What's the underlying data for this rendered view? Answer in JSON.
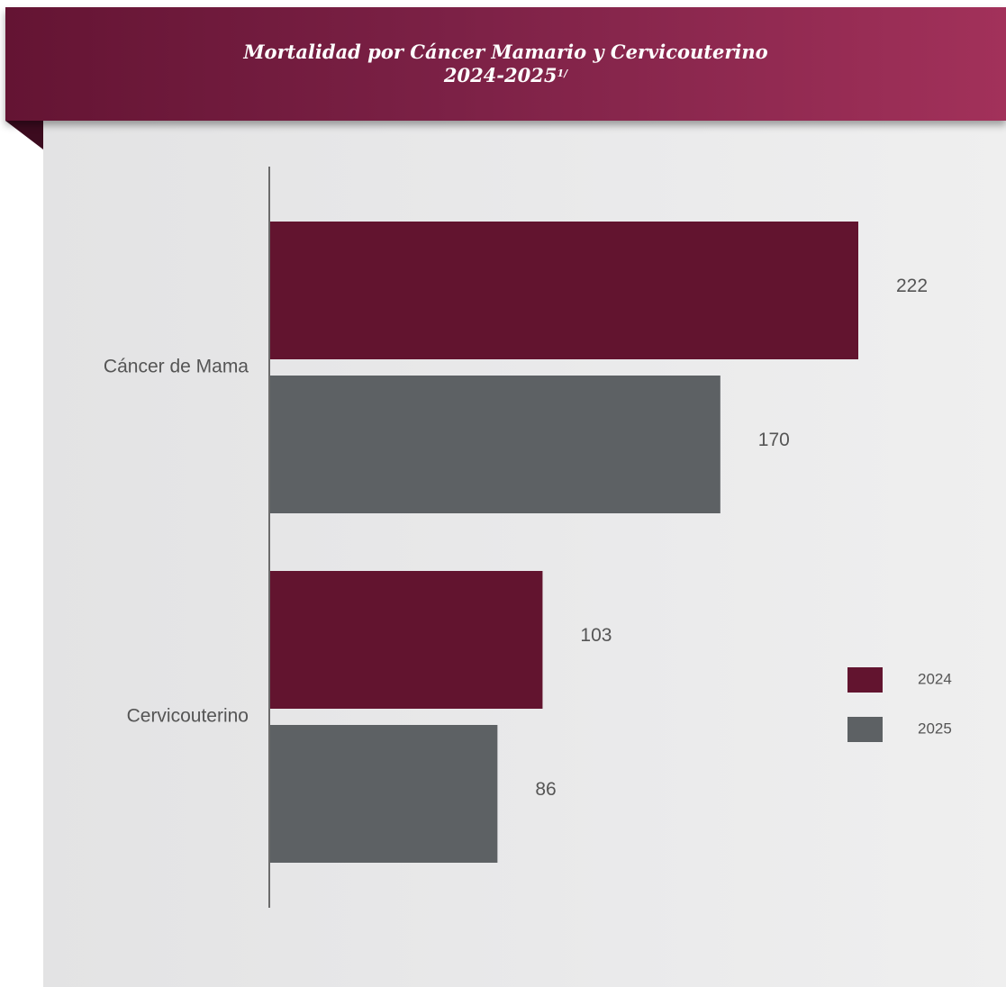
{
  "header": {
    "title_line1": "Mortalidad por Cáncer Mamario y Cervicouterino",
    "title_line2": "2024-2025",
    "title_footnote": "1/"
  },
  "colors": {
    "series_2024": "#62142f",
    "series_2025": "#5d6164",
    "axis": "#6b6b6b",
    "text": "#555555"
  },
  "chart_data": {
    "type": "bar",
    "orientation": "horizontal",
    "title": "Mortalidad por Cáncer Mamario y Cervicouterino 2024-2025",
    "categories": [
      "Cáncer de  Mama",
      "Cervicouterino"
    ],
    "series": [
      {
        "name": "2024",
        "values": [
          222,
          103
        ]
      },
      {
        "name": "2025",
        "values": [
          170,
          86
        ]
      }
    ],
    "xlim": [
      0,
      240
    ],
    "grid": false,
    "legend": "right",
    "data_labels": true
  }
}
